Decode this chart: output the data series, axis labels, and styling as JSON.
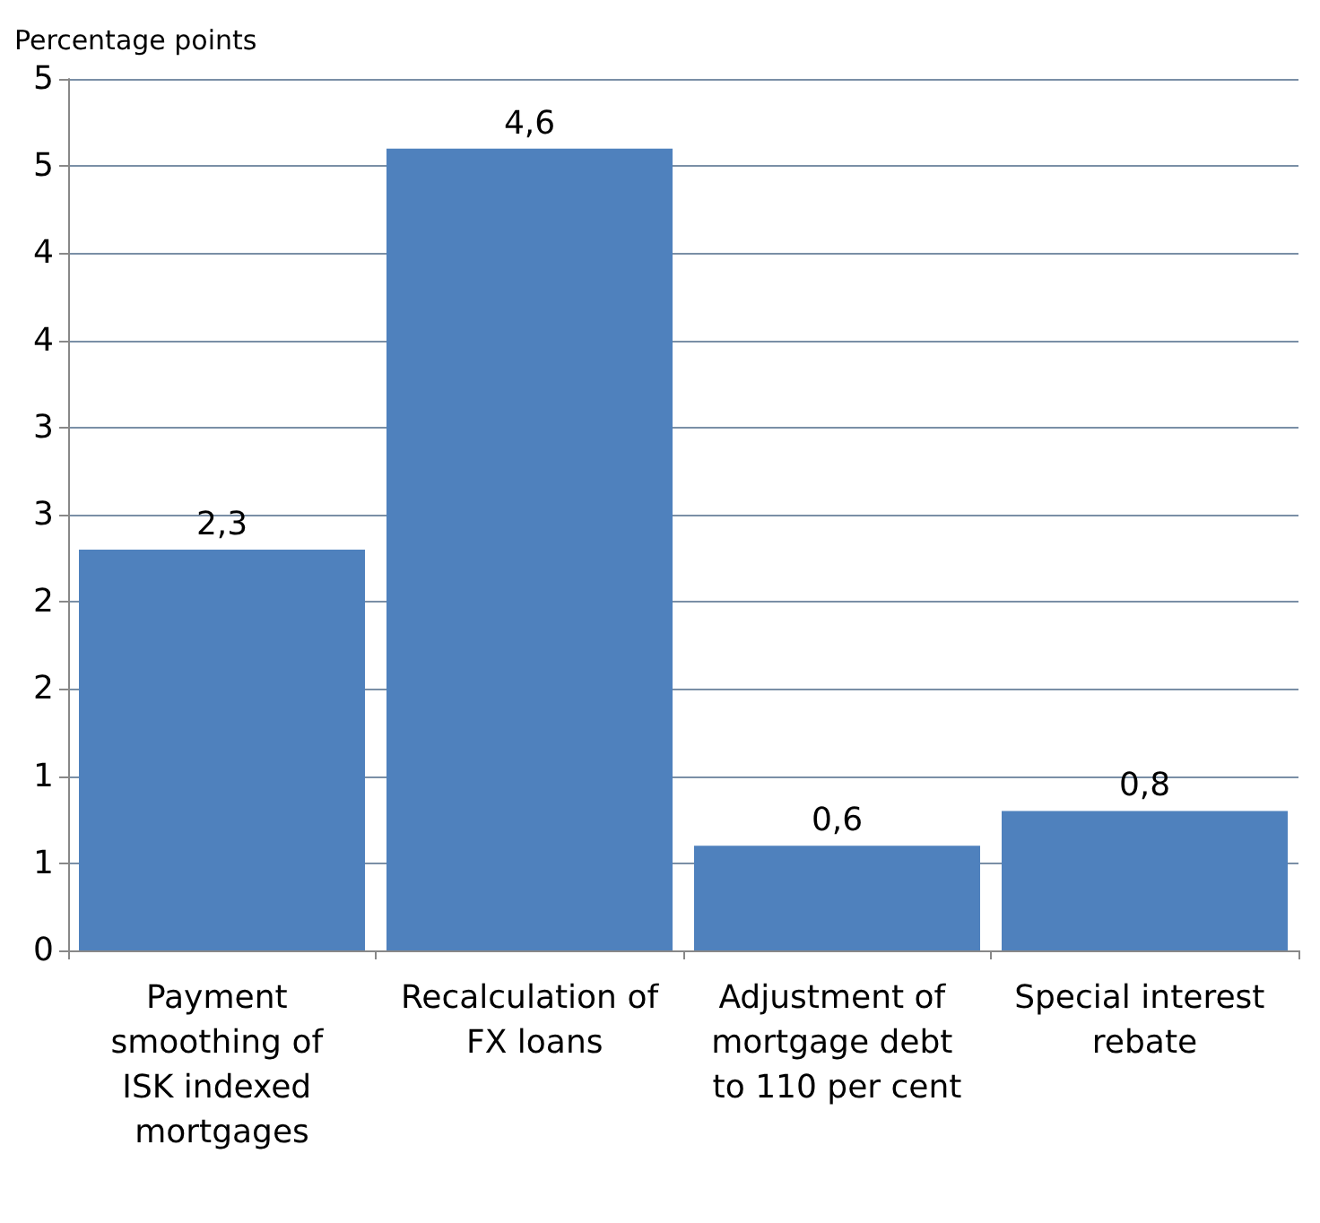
{
  "chart_data": {
    "type": "bar",
    "ylabel": "Percentage points",
    "categories": [
      "Payment smoothing of ISK indexed mortgages",
      "Recalculation of FX loans",
      "Adjustment of mortgage debt to 110 per cent",
      "Special interest rebate"
    ],
    "values": [
      2.3,
      4.6,
      0.6,
      0.8
    ],
    "value_labels": [
      "2,3",
      "4,6",
      "0,6",
      "0,8"
    ],
    "color": "#4f81bd",
    "ylim": [
      0,
      5
    ],
    "yticks": [
      0,
      {
        "value": 0.5,
        "label": "1"
      },
      1,
      {
        "value": 1.5,
        "label": "2"
      },
      2,
      {
        "value": 2.5,
        "label": "3"
      },
      3,
      {
        "value": 3.5,
        "label": "4"
      },
      4,
      {
        "value": 4.5,
        "label": "5"
      },
      5
    ],
    "grid": "y"
  }
}
